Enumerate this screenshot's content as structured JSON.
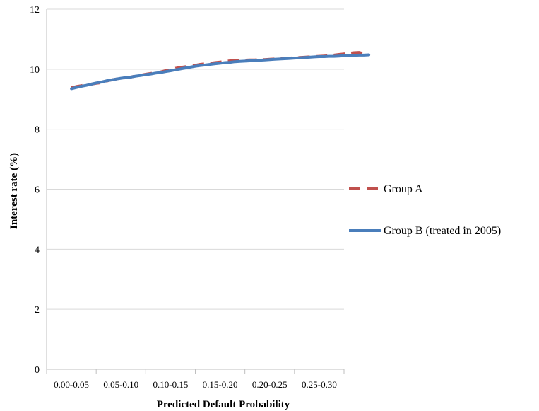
{
  "chart_data": {
    "type": "line",
    "categories": [
      "0.00-0.05",
      "0.05-0.10",
      "0.10-0.15",
      "0.15-0.20",
      "0.20-0.25",
      "0.25-0.30"
    ],
    "xlabel": "Predicted Default Probability",
    "ylabel": "Interest rate (%)",
    "ylim": [
      0,
      12
    ],
    "yticks": [
      0,
      2,
      4,
      6,
      8,
      10,
      12
    ],
    "grid": true,
    "legend_position": "right",
    "series": [
      {
        "name": "Group A",
        "color": "#c0504d",
        "style": "dashed",
        "x": [
          0.0,
          0.1,
          0.2,
          0.3,
          0.4,
          0.5,
          0.6,
          0.7,
          0.8,
          0.9,
          1.0,
          1.1,
          1.2,
          1.3,
          1.4,
          1.5,
          1.6,
          1.7,
          1.8,
          1.9,
          2.0,
          2.1,
          2.2,
          2.3,
          2.4,
          2.5,
          2.6,
          2.7,
          2.8,
          2.9,
          3.0,
          3.1,
          3.2,
          3.3,
          3.4,
          3.5,
          3.6,
          3.7,
          3.8,
          3.9,
          4.0,
          4.1,
          4.2,
          4.3,
          4.4,
          4.5,
          4.6,
          4.7,
          4.8,
          4.9,
          5.0,
          5.1,
          5.2,
          5.3,
          5.4,
          5.5,
          5.6,
          5.7,
          5.8,
          5.9,
          6.0
        ],
        "values": [
          9.38,
          9.42,
          9.45,
          9.48,
          9.5,
          9.53,
          9.55,
          9.6,
          9.64,
          9.67,
          9.69,
          9.72,
          9.74,
          9.78,
          9.8,
          9.83,
          9.86,
          9.88,
          9.91,
          9.95,
          9.98,
          10.03,
          10.06,
          10.08,
          10.1,
          10.13,
          10.16,
          10.18,
          10.2,
          10.22,
          10.24,
          10.26,
          10.28,
          10.3,
          10.3,
          10.3,
          10.31,
          10.31,
          10.32,
          10.32,
          10.33,
          10.34,
          10.35,
          10.36,
          10.37,
          10.38,
          10.39,
          10.4,
          10.41,
          10.42,
          10.43,
          10.44,
          10.45,
          10.47,
          10.49,
          10.51,
          10.53,
          10.55,
          10.56,
          10.52,
          10.5
        ]
      },
      {
        "name": "Group B (treated in 2005)",
        "color": "#4a7ebb",
        "style": "solid",
        "x": [
          0.0,
          0.1,
          0.2,
          0.3,
          0.4,
          0.5,
          0.6,
          0.7,
          0.8,
          0.9,
          1.0,
          1.1,
          1.2,
          1.3,
          1.4,
          1.5,
          1.6,
          1.7,
          1.8,
          1.9,
          2.0,
          2.1,
          2.2,
          2.3,
          2.4,
          2.5,
          2.6,
          2.7,
          2.8,
          2.9,
          3.0,
          3.1,
          3.2,
          3.3,
          3.4,
          3.5,
          3.6,
          3.7,
          3.8,
          3.9,
          4.0,
          4.1,
          4.2,
          4.3,
          4.4,
          4.5,
          4.6,
          4.7,
          4.8,
          4.9,
          5.0,
          5.1,
          5.2,
          5.3,
          5.4,
          5.5,
          5.6,
          5.7,
          5.8,
          5.9,
          6.0
        ],
        "values": [
          9.35,
          9.39,
          9.43,
          9.46,
          9.5,
          9.54,
          9.57,
          9.61,
          9.64,
          9.67,
          9.7,
          9.72,
          9.74,
          9.77,
          9.79,
          9.82,
          9.84,
          9.87,
          9.89,
          9.92,
          9.95,
          9.98,
          10.01,
          10.04,
          10.07,
          10.1,
          10.12,
          10.14,
          10.16,
          10.18,
          10.2,
          10.22,
          10.23,
          10.25,
          10.26,
          10.27,
          10.28,
          10.29,
          10.3,
          10.31,
          10.32,
          10.33,
          10.34,
          10.35,
          10.36,
          10.37,
          10.38,
          10.39,
          10.4,
          10.41,
          10.42,
          10.42,
          10.43,
          10.43,
          10.44,
          10.45,
          10.45,
          10.46,
          10.47,
          10.47,
          10.48
        ]
      }
    ]
  }
}
